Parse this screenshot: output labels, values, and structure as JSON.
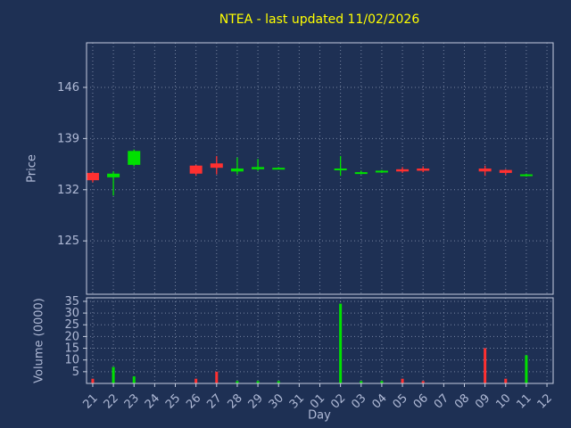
{
  "colors": {
    "bg": "#1e3054",
    "title": "#ffff00",
    "label": "#b0bad6",
    "tick": "#b0bad6",
    "grid": "#8d99b5",
    "spine": "#c5cddf",
    "up": "#00e000",
    "down": "#ff3030"
  },
  "chart_data": {
    "type": "candlestick_volume",
    "title": "NTEA - last updated 11/02/2026",
    "xlabel": "Day",
    "price_ylabel": "Price",
    "volume_ylabel": "Volume (0000)",
    "grid": "dotted",
    "x_tick_labels": [
      "21",
      "22",
      "23",
      "24",
      "25",
      "26",
      "27",
      "28",
      "29",
      "30",
      "31",
      "01",
      "02",
      "03",
      "04",
      "05",
      "06",
      "07",
      "08",
      "09",
      "10",
      "11",
      "12"
    ],
    "price_ticks": [
      125,
      132,
      139,
      146
    ],
    "price_range": [
      117.7,
      152.1
    ],
    "volume_ticks": [
      5,
      10,
      15,
      20,
      25,
      30,
      35
    ],
    "volume_range": [
      0,
      36.5
    ],
    "candles": [
      {
        "day": "21",
        "open": 134.3,
        "high": 134.4,
        "low": 133.0,
        "close": 133.3,
        "volume": 2
      },
      {
        "day": "22",
        "open": 133.7,
        "high": 134.5,
        "low": 131.2,
        "close": 134.2,
        "volume": 7
      },
      {
        "day": "23",
        "open": 135.4,
        "high": 137.5,
        "low": 135.2,
        "close": 137.3,
        "volume": 3
      },
      {
        "day": "26",
        "open": 135.3,
        "high": 135.4,
        "low": 133.9,
        "close": 134.2,
        "volume": 2
      },
      {
        "day": "27",
        "open": 135.6,
        "high": 136.6,
        "low": 134.1,
        "close": 135.0,
        "volume": 5
      },
      {
        "day": "28",
        "open": 134.5,
        "high": 136.4,
        "low": 134.1,
        "close": 134.9,
        "volume": 1
      },
      {
        "day": "29",
        "open": 134.8,
        "high": 136.2,
        "low": 134.6,
        "close": 135.1,
        "volume": 1
      },
      {
        "day": "30",
        "open": 134.9,
        "high": 135.1,
        "low": 134.8,
        "close": 135.0,
        "volume": 1
      },
      {
        "day": "02",
        "open": 134.7,
        "high": 136.6,
        "low": 133.9,
        "close": 134.9,
        "volume": 34
      },
      {
        "day": "03",
        "open": 134.2,
        "high": 134.6,
        "low": 134.1,
        "close": 134.4,
        "volume": 1
      },
      {
        "day": "04",
        "open": 134.4,
        "high": 134.7,
        "low": 134.3,
        "close": 134.6,
        "volume": 1
      },
      {
        "day": "05",
        "open": 134.8,
        "high": 135.1,
        "low": 134.3,
        "close": 134.5,
        "volume": 2
      },
      {
        "day": "06",
        "open": 134.9,
        "high": 135.2,
        "low": 134.4,
        "close": 134.6,
        "volume": 1
      },
      {
        "day": "09",
        "open": 134.9,
        "high": 135.3,
        "low": 133.9,
        "close": 134.5,
        "volume": 15
      },
      {
        "day": "10",
        "open": 134.7,
        "high": 134.8,
        "low": 134.0,
        "close": 134.3,
        "volume": 2
      },
      {
        "day": "11",
        "open": 133.9,
        "high": 134.2,
        "low": 133.8,
        "close": 134.1,
        "volume": 12
      }
    ]
  }
}
